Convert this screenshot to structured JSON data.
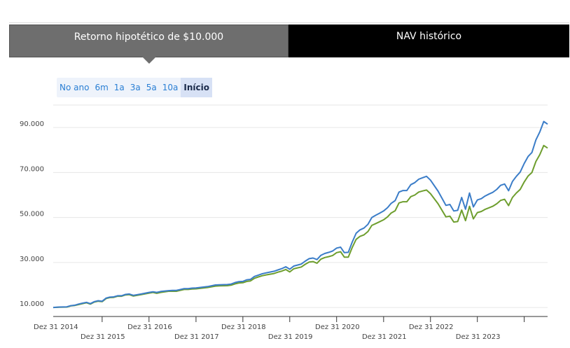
{
  "tabs": [
    {
      "label": "Retorno hipotético de $10.000",
      "active": true
    },
    {
      "label": "NAV histórico",
      "active": false
    }
  ],
  "ranges": [
    {
      "label": "No ano",
      "selected": false
    },
    {
      "label": "6m",
      "selected": false
    },
    {
      "label": "1a",
      "selected": false
    },
    {
      "label": "3a",
      "selected": false
    },
    {
      "label": "5a",
      "selected": false
    },
    {
      "label": "10a",
      "selected": false
    },
    {
      "label": "Início",
      "selected": true
    }
  ],
  "colors": {
    "series_1": "#3b7dc8",
    "series_2": "#6e9e2e",
    "grid": "#e6e6e6",
    "axis": "#333333"
  },
  "chart_data": {
    "type": "line",
    "title": "",
    "xlabel": "",
    "ylabel": "",
    "ylim": [
      6000,
      100000
    ],
    "yticks": [
      10000,
      30000,
      50000,
      70000,
      90000
    ],
    "ytick_labels": [
      "10.000",
      "30.000",
      "50.000",
      "70.000",
      "90.000"
    ],
    "xlim": [
      "2013-12-15",
      "2024-06-30"
    ],
    "xticks": [
      {
        "date": "2014-12-31",
        "label": "Dez 31 2014"
      },
      {
        "date": "2015-12-31",
        "label": "Dez 31 2015"
      },
      {
        "date": "2016-12-31",
        "label": "Dez 31 2016"
      },
      {
        "date": "2017-12-31",
        "label": "Dez 31 2017"
      },
      {
        "date": "2018-12-31",
        "label": "Dez 31 2018"
      },
      {
        "date": "2019-12-31",
        "label": "Dez 31 2019"
      },
      {
        "date": "2020-12-31",
        "label": "Dez 31 2020"
      },
      {
        "date": "2021-12-31",
        "label": "Dez 31 2021"
      },
      {
        "date": "2022-12-31",
        "label": "Dez 31 2022"
      },
      {
        "date": "2023-12-31",
        "label": "Dez 31 2023"
      }
    ],
    "grid": true,
    "legend": "none",
    "x": [
      "2013-12-15",
      "2014-01-31",
      "2014-03-31",
      "2014-04-30",
      "2014-05-31",
      "2014-06-30",
      "2014-07-31",
      "2014-08-31",
      "2014-09-30",
      "2014-10-31",
      "2014-11-30",
      "2014-12-31",
      "2015-01-31",
      "2015-02-28",
      "2015-03-31",
      "2015-04-30",
      "2015-05-31",
      "2015-06-30",
      "2015-07-31",
      "2015-08-31",
      "2015-10-31",
      "2015-12-31",
      "2016-01-31",
      "2016-02-29",
      "2016-03-31",
      "2016-05-31",
      "2016-06-30",
      "2016-07-31",
      "2016-09-30",
      "2016-10-31",
      "2016-11-30",
      "2016-12-31",
      "2017-03-31",
      "2017-05-31",
      "2017-06-30",
      "2017-08-31",
      "2017-09-30",
      "2017-10-31",
      "2017-11-30",
      "2017-12-31",
      "2018-01-31",
      "2018-02-28",
      "2018-03-31",
      "2018-04-30",
      "2018-05-31",
      "2018-06-30",
      "2018-08-31",
      "2018-09-30",
      "2018-10-31",
      "2018-11-30",
      "2018-12-31",
      "2019-01-31",
      "2019-03-31",
      "2019-04-30",
      "2019-05-31",
      "2019-06-30",
      "2019-07-31",
      "2019-08-31",
      "2019-09-30",
      "2019-10-31",
      "2019-11-30",
      "2019-12-31",
      "2020-01-31",
      "2020-02-29",
      "2020-03-31",
      "2020-04-30",
      "2020-05-31",
      "2020-06-30",
      "2020-07-31",
      "2020-08-31",
      "2020-09-30",
      "2020-10-31",
      "2020-11-30",
      "2020-12-31",
      "2021-01-31",
      "2021-02-28",
      "2021-03-31",
      "2021-04-30",
      "2021-05-31",
      "2021-06-30",
      "2021-07-31",
      "2021-08-31",
      "2021-09-30",
      "2021-10-31",
      "2021-11-30",
      "2021-12-31",
      "2022-02-28",
      "2022-04-30",
      "2022-05-31",
      "2022-06-30",
      "2022-07-31",
      "2022-08-31",
      "2022-09-30",
      "2022-10-31",
      "2022-11-30",
      "2022-12-31",
      "2023-01-31",
      "2023-02-28",
      "2023-03-31",
      "2023-04-30",
      "2023-05-31",
      "2023-06-30",
      "2023-07-31",
      "2023-08-31",
      "2023-09-30",
      "2023-10-31",
      "2023-11-30",
      "2023-12-31",
      "2024-01-31",
      "2024-02-29",
      "2024-03-31",
      "2024-04-30",
      "2024-05-31",
      "2024-06-30"
    ],
    "series": [
      {
        "values": [
          10000,
          10200,
          10300,
          10800,
          11000,
          11500,
          11900,
          12300,
          11700,
          12600,
          13000,
          12800,
          14200,
          14600,
          14700,
          15200,
          15200,
          15800,
          16000,
          15400,
          16000,
          16700,
          17000,
          16700,
          17100,
          17500,
          17600,
          17600,
          18400,
          18400,
          18600,
          18700,
          19300,
          20000,
          20100,
          20200,
          20400,
          21100,
          21500,
          21600,
          22300,
          22500,
          23800,
          24400,
          25000,
          25400,
          26100,
          26700,
          27300,
          28100,
          27000,
          28400,
          29300,
          30600,
          31700,
          32000,
          31300,
          33200,
          34000,
          34500,
          35100,
          36400,
          36800,
          34400,
          34500,
          39000,
          43000,
          44500,
          45300,
          47000,
          50000,
          51000,
          51900,
          52900,
          54400,
          56300,
          57500,
          61300,
          62000,
          62000,
          64600,
          65500,
          67000,
          67700,
          68300,
          66600,
          61700,
          55400,
          55800,
          52900,
          53200,
          58900,
          53700,
          60900,
          54700,
          57800,
          58400,
          59500,
          60400,
          61200,
          62500,
          64300,
          64900,
          61900,
          66000,
          68300,
          70200,
          74000,
          77200,
          78900,
          84500,
          88000,
          92700,
          91500
        ],
        "color": "#3b7dc8"
      },
      {
        "values": [
          10000,
          10100,
          10200,
          10700,
          10900,
          11300,
          11700,
          12100,
          11500,
          12400,
          12800,
          12600,
          14000,
          14400,
          14500,
          15000,
          15000,
          15600,
          15700,
          15100,
          15700,
          16400,
          16700,
          16300,
          16700,
          17200,
          17200,
          17200,
          18000,
          18000,
          18200,
          18300,
          18900,
          19500,
          19600,
          19700,
          19900,
          20500,
          20900,
          21000,
          21600,
          21800,
          23000,
          23600,
          24100,
          24500,
          25100,
          25700,
          26200,
          26900,
          25800,
          27200,
          28000,
          29200,
          30200,
          30400,
          29700,
          31500,
          32200,
          32600,
          33100,
          34400,
          34800,
          32400,
          32400,
          36600,
          40300,
          41600,
          42300,
          43800,
          46500,
          47300,
          48100,
          49000,
          50300,
          52000,
          53000,
          56500,
          57000,
          57000,
          59300,
          60000,
          61300,
          61800,
          62200,
          60600,
          56100,
          50300,
          50600,
          48000,
          48200,
          53300,
          48600,
          55000,
          49400,
          52200,
          52700,
          53600,
          54300,
          55000,
          56100,
          57600,
          58100,
          55300,
          58900,
          60900,
          62500,
          65800,
          68500,
          70000,
          74900,
          77900,
          82000,
          80900
        ],
        "color": "#6e9e2e"
      }
    ]
  }
}
